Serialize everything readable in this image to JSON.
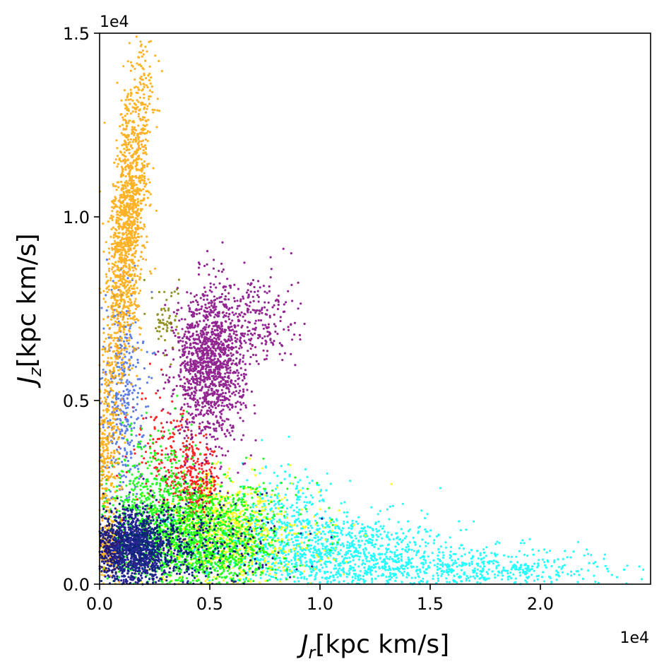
{
  "chart_data": {
    "type": "scatter",
    "title": "",
    "xlabel": {
      "main": "J",
      "sub": "r",
      "unit": "[kpc km/s]"
    },
    "ylabel": {
      "main": "J",
      "sub": "z",
      "unit": "[kpc km/s]"
    },
    "x_offset_text": "1e4",
    "y_offset_text": "1e4",
    "xlim": [
      0,
      2.5
    ],
    "ylim": [
      0,
      1.5
    ],
    "x_ticks": [
      {
        "value": 0.0,
        "label": "0.0"
      },
      {
        "value": 0.5,
        "label": "0.5"
      },
      {
        "value": 1.0,
        "label": "1.0"
      },
      {
        "value": 1.5,
        "label": "1.5"
      },
      {
        "value": 2.0,
        "label": "2.0"
      }
    ],
    "y_ticks": [
      {
        "value": 0.0,
        "label": "0.0"
      },
      {
        "value": 0.5,
        "label": "0.5"
      },
      {
        "value": 1.0,
        "label": "1.0"
      },
      {
        "value": 1.5,
        "label": "1.5"
      }
    ],
    "grid": false,
    "legend": "none",
    "series": [
      {
        "color": "#00ffff",
        "clusters": [
          {
            "cx": 1.05,
            "cy": 0.08,
            "sx": 0.3,
            "sy": 0.06,
            "n": 1300,
            "corr": -0.2
          },
          {
            "cx": 1.75,
            "cy": 0.04,
            "sx": 0.28,
            "sy": 0.03,
            "n": 450
          },
          {
            "cx": 0.85,
            "cy": 0.2,
            "sx": 0.1,
            "sy": 0.07,
            "n": 200
          }
        ]
      },
      {
        "color": "#ffff00",
        "clusters": [
          {
            "cx": 0.6,
            "cy": 0.12,
            "sx": 0.2,
            "sy": 0.07,
            "n": 700
          },
          {
            "cx": 0.5,
            "cy": 0.2,
            "sx": 0.1,
            "sy": 0.05,
            "n": 250
          }
        ]
      },
      {
        "color": "#ff0000",
        "clusters": [
          {
            "cx": 0.43,
            "cy": 0.28,
            "sx": 0.06,
            "sy": 0.05,
            "n": 250
          },
          {
            "cx": 0.3,
            "cy": 0.36,
            "sx": 0.08,
            "sy": 0.08,
            "n": 150
          }
        ]
      },
      {
        "color": "#800080",
        "clusters": [
          {
            "cx": 0.5,
            "cy": 0.6,
            "sx": 0.08,
            "sy": 0.1,
            "n": 1300
          },
          {
            "cx": 0.7,
            "cy": 0.72,
            "sx": 0.1,
            "sy": 0.07,
            "n": 250
          }
        ]
      },
      {
        "color": "#808000",
        "clusters": [
          {
            "cx": 0.3,
            "cy": 0.72,
            "sx": 0.03,
            "sy": 0.05,
            "n": 60
          }
        ]
      },
      {
        "color": "#4169e1",
        "clusters": [
          {
            "cx": 0.1,
            "cy": 0.52,
            "sx": 0.05,
            "sy": 0.15,
            "n": 400
          }
        ]
      },
      {
        "color": "#00ff00",
        "clusters": [
          {
            "cx": 0.42,
            "cy": 0.12,
            "sx": 0.2,
            "sy": 0.08,
            "n": 1700
          },
          {
            "cx": 0.26,
            "cy": 0.26,
            "sx": 0.1,
            "sy": 0.08,
            "n": 300
          }
        ]
      },
      {
        "color": "#ffa500",
        "clusters": [
          {
            "cx": 0.13,
            "cy": 0.98,
            "sx": 0.05,
            "sy": 0.22,
            "n": 1500,
            "corr": 0.6
          },
          {
            "cx": 0.03,
            "cy": 0.36,
            "sx": 0.03,
            "sy": 0.12,
            "n": 300
          },
          {
            "cx": 0.04,
            "cy": 0.1,
            "sx": 0.03,
            "sy": 0.05,
            "n": 200
          }
        ]
      },
      {
        "color": "#000080",
        "clusters": [
          {
            "cx": 0.15,
            "cy": 0.1,
            "sx": 0.1,
            "sy": 0.05,
            "n": 1500
          },
          {
            "cx": 0.45,
            "cy": 0.1,
            "sx": 0.2,
            "sy": 0.07,
            "n": 300
          }
        ]
      }
    ]
  }
}
